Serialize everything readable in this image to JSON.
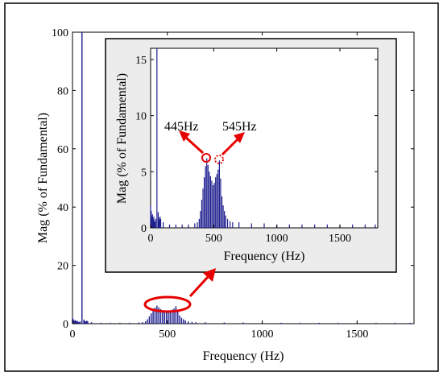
{
  "colors": {
    "bars": "#1f1f8f",
    "annotation": "#e60000",
    "axes": "#000000",
    "inset_background": "#ececec",
    "plot_background": "#ffffff"
  },
  "chart_data": [
    {
      "id": "main",
      "type": "bar",
      "title": "",
      "xlabel": "Frequency (Hz)",
      "ylabel": "Mag (% of Fundamental)",
      "xlim": [
        0,
        1800
      ],
      "ylim": [
        0,
        100
      ],
      "xticks": [
        "0",
        "500",
        "1000",
        "1500"
      ],
      "yticks": [
        "0",
        "20",
        "40",
        "60",
        "80",
        "100"
      ],
      "grid": false,
      "note_highlight": "ellipse around cluster 400–560 Hz",
      "x": [
        0,
        5,
        10,
        15,
        20,
        25,
        30,
        35,
        40,
        50,
        60,
        65,
        70,
        75,
        80,
        100,
        150,
        200,
        250,
        300,
        350,
        370,
        385,
        395,
        405,
        415,
        425,
        435,
        445,
        455,
        465,
        475,
        485,
        495,
        505,
        515,
        525,
        535,
        545,
        555,
        565,
        575,
        585,
        595,
        610,
        630,
        650,
        700,
        800,
        900,
        1000,
        1100,
        1200,
        1300,
        1400,
        1500,
        1600,
        1700,
        1780
      ],
      "values": [
        2.0,
        1.5,
        1.0,
        1.2,
        0.8,
        1.0,
        0.6,
        0.5,
        0.8,
        100,
        1.4,
        0.9,
        0.7,
        1.0,
        0.8,
        0.5,
        0.3,
        0.3,
        0.3,
        0.3,
        0.4,
        0.5,
        0.8,
        1.5,
        2.5,
        3.5,
        4.5,
        5.5,
        6.2,
        5.6,
        5.0,
        4.6,
        4.2,
        3.8,
        4.0,
        4.5,
        4.8,
        5.2,
        6.0,
        4.4,
        2.8,
        2.0,
        1.5,
        1.1,
        0.8,
        0.6,
        0.5,
        0.5,
        0.4,
        0.4,
        0.3,
        0.3,
        0.3,
        0.3,
        0.3,
        0.3,
        0.3,
        0.3,
        0.3
      ]
    },
    {
      "id": "inset",
      "type": "bar",
      "title": "",
      "xlabel": "Frequency (Hz)",
      "ylabel": "Mag (% of Fundamental)",
      "xlim": [
        0,
        1800
      ],
      "ylim": [
        0,
        16
      ],
      "xticks": [
        "0",
        "500",
        "1000",
        "1500"
      ],
      "yticks": [
        "0",
        "5",
        "10",
        "15"
      ],
      "grid": false,
      "annotations": [
        {
          "label": "445Hz",
          "x": 445,
          "y": 6.1,
          "marker": "solid circle"
        },
        {
          "label": "545Hz",
          "x": 545,
          "y": 6.0,
          "marker": "dashed circle"
        }
      ],
      "x": [
        0,
        5,
        10,
        15,
        20,
        25,
        30,
        35,
        40,
        50,
        60,
        65,
        70,
        75,
        80,
        100,
        150,
        200,
        250,
        300,
        350,
        370,
        385,
        395,
        405,
        415,
        425,
        435,
        445,
        455,
        465,
        475,
        485,
        495,
        505,
        515,
        525,
        535,
        545,
        555,
        565,
        575,
        585,
        595,
        610,
        630,
        650,
        700,
        800,
        900,
        1000,
        1100,
        1200,
        1300,
        1400,
        1500,
        1600,
        1700,
        1780
      ],
      "values": [
        2.0,
        1.5,
        1.0,
        1.2,
        0.8,
        1.0,
        0.6,
        0.5,
        0.8,
        16,
        1.4,
        0.9,
        0.7,
        1.0,
        0.8,
        0.5,
        0.3,
        0.3,
        0.3,
        0.3,
        0.4,
        0.5,
        0.8,
        1.5,
        2.5,
        3.5,
        4.5,
        5.5,
        6.2,
        5.6,
        5.0,
        4.6,
        4.2,
        3.8,
        4.0,
        4.5,
        4.8,
        5.2,
        6.0,
        4.4,
        2.8,
        2.0,
        1.5,
        1.1,
        0.8,
        0.6,
        0.5,
        0.5,
        0.4,
        0.4,
        0.3,
        0.3,
        0.3,
        0.3,
        0.3,
        0.3,
        0.3,
        0.3,
        0.3
      ]
    }
  ]
}
